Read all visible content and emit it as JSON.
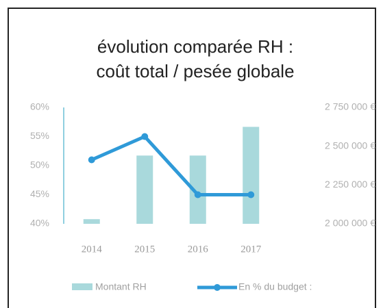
{
  "chart_data": {
    "type": "bar-line",
    "title": [
      "évolution comparée RH :",
      "coût total / pesée globale"
    ],
    "categories": [
      "2014",
      "2015",
      "2016",
      "2017"
    ],
    "series": [
      {
        "name": "Montant RH",
        "type": "bar",
        "axis": "y2",
        "color": "#a9d9dc",
        "values": [
          2030000,
          2440000,
          2440000,
          2625000
        ]
      },
      {
        "name": "En % du budget :",
        "type": "line",
        "axis": "y",
        "color": "#2f9ad8",
        "values": [
          51,
          55,
          45,
          45
        ]
      }
    ],
    "ylim": [
      40,
      60
    ],
    "yticks": [
      {
        "value": 40,
        "label": "40%"
      },
      {
        "value": 45,
        "label": "45%"
      },
      {
        "value": 50,
        "label": "50%"
      },
      {
        "value": 55,
        "label": "55%"
      },
      {
        "value": 60,
        "label": "60%"
      }
    ],
    "y2lim": [
      2000000,
      2750000
    ],
    "y2ticks": [
      {
        "value": 2000000,
        "label": "2 000 000 €"
      },
      {
        "value": 2250000,
        "label": "2 250 000 €"
      },
      {
        "value": 2500000,
        "label": "2 500 000 €"
      },
      {
        "value": 2750000,
        "label": "2 750 000 €"
      }
    ],
    "legend": "bottom"
  }
}
